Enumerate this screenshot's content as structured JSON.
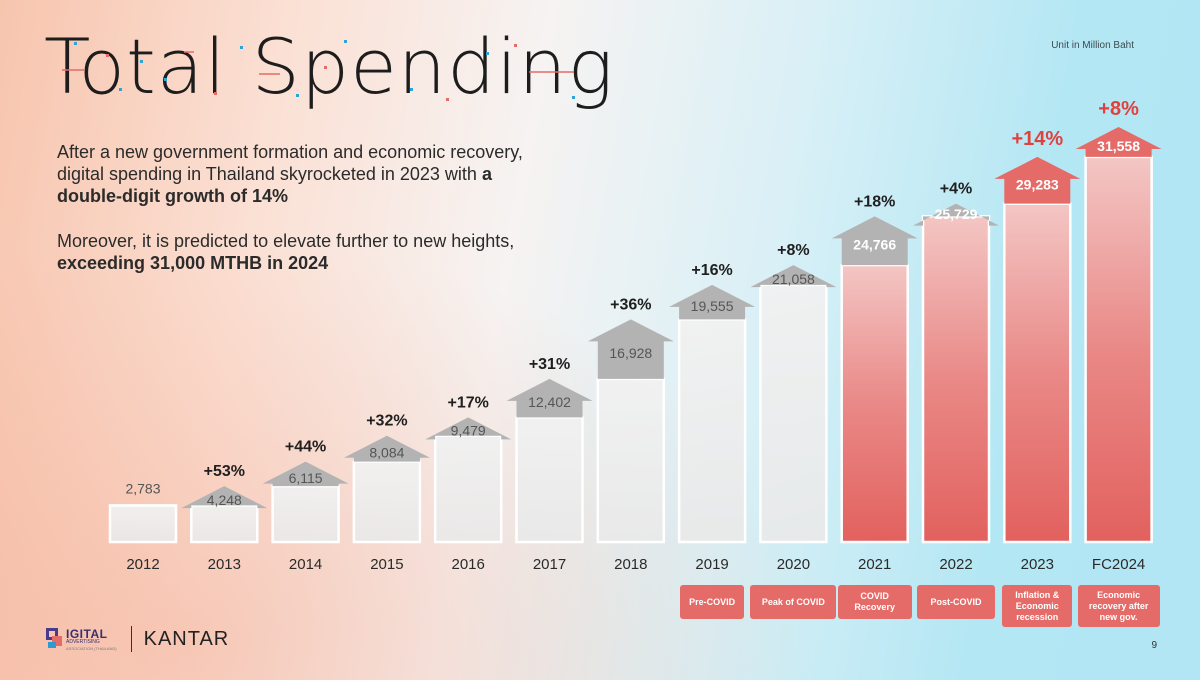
{
  "slide": {
    "title": "Total Spending",
    "unit_note": "Unit in Million Baht",
    "paragraph1": {
      "text": "After a new government formation and economic recovery, digital spending in Thailand skyrocketed in 2023 with ",
      "bold": "a double-digit growth of 14%"
    },
    "paragraph2": {
      "text": "Moreover, it is predicted to elevate further to new heights, ",
      "bold": "exceeding 31,000 MTHB in 2024"
    },
    "page_number": "9"
  },
  "footer": {
    "logo_text": "IGITAL",
    "logo_subtext": "ADVERTISING",
    "logo_tiny": "ASSOCIATION (THAILAND)",
    "partner": "KANTAR"
  },
  "colors": {
    "arrow_gray": "#b3b3b3",
    "arrow_red": "#e56b68",
    "growth_text": "#1f1f1f",
    "growth_text_red": "#e0413d",
    "label_text": "#555555"
  },
  "chart_data": {
    "type": "bar",
    "title": "Total Spending",
    "ylabel": "Unit in Million Baht",
    "ylim": [
      0,
      33000
    ],
    "categories": [
      "2012",
      "2013",
      "2014",
      "2015",
      "2016",
      "2017",
      "2018",
      "2019",
      "2020",
      "2021",
      "2022",
      "2023",
      "FC2024"
    ],
    "values": [
      2783,
      4248,
      6115,
      8084,
      9479,
      12402,
      16928,
      19555,
      21058,
      24766,
      25729,
      29283,
      31558
    ],
    "value_labels": [
      "2,783",
      "4,248",
      "6,115",
      "8,084",
      "9,479",
      "12,402",
      "16,928",
      "19,555",
      "21,058",
      "24,766",
      "25,729",
      "29,283",
      "31,558"
    ],
    "growth": [
      "",
      "+53%",
      "+44%",
      "+32%",
      "+17%",
      "+31%",
      "+36%",
      "+16%",
      "+8%",
      "+18%",
      "+4%",
      "+14%",
      "+8%"
    ],
    "highlighted": [
      false,
      false,
      false,
      false,
      false,
      false,
      false,
      false,
      false,
      true,
      true,
      true,
      true
    ],
    "red_arrows": [
      false,
      false,
      false,
      false,
      false,
      false,
      false,
      false,
      false,
      false,
      false,
      true,
      true
    ],
    "period_annotations": [
      {
        "category": "2019",
        "label": "Pre-COVID"
      },
      {
        "category": "2020",
        "label": "Peak of COVID"
      },
      {
        "category": "2021",
        "label": "COVID Recovery"
      },
      {
        "category": "2022",
        "label": "Post-COVID"
      },
      {
        "category": "2023",
        "label": "Inflation & Economic recession"
      },
      {
        "category": "FC2024",
        "label": "Economic recovery after new gov."
      }
    ]
  }
}
